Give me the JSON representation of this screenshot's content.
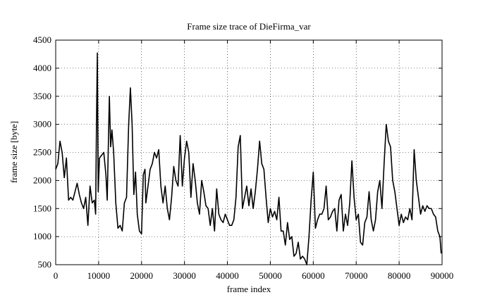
{
  "chart_data": {
    "type": "line",
    "title": "Frame size trace of DieFirma_var",
    "x_label": "frame index",
    "y_label": "frame size [byte]",
    "x": [
      0,
      500,
      1000,
      1500,
      2000,
      2500,
      3000,
      3500,
      4000,
      4500,
      5000,
      5500,
      6000,
      6500,
      7000,
      7500,
      8000,
      8500,
      9000,
      9300,
      9500,
      9700,
      9900,
      10200,
      10700,
      11200,
      11700,
      12000,
      12500,
      12800,
      13100,
      13500,
      14000,
      14500,
      15000,
      15500,
      16000,
      16500,
      17000,
      17400,
      17800,
      18200,
      18600,
      19000,
      19500,
      20000,
      20400,
      20800,
      21000,
      21500,
      22000,
      22500,
      23000,
      23500,
      24000,
      24500,
      25000,
      25500,
      26000,
      26500,
      27000,
      27500,
      28000,
      28500,
      29000,
      29500,
      30000,
      30500,
      31000,
      31500,
      32000,
      32500,
      33000,
      33500,
      34000,
      34500,
      35000,
      35500,
      36000,
      36500,
      37000,
      37500,
      38000,
      38500,
      39000,
      39500,
      40000,
      40500,
      41000,
      41500,
      42000,
      42500,
      43000,
      43500,
      44000,
      44500,
      45000,
      45500,
      46000,
      46500,
      47000,
      47500,
      48000,
      48500,
      49000,
      49500,
      50000,
      50500,
      51000,
      51500,
      52000,
      52500,
      53000,
      53500,
      54000,
      54500,
      55000,
      55500,
      56000,
      56500,
      57000,
      57500,
      58000,
      58500,
      59000,
      59500,
      60000,
      60500,
      61000,
      61500,
      62000,
      62500,
      63000,
      63500,
      64000,
      64500,
      65000,
      65500,
      66000,
      66500,
      67000,
      67500,
      68000,
      68500,
      69000,
      69500,
      70000,
      70500,
      71000,
      71500,
      72000,
      72500,
      73000,
      73500,
      74000,
      74500,
      75000,
      75500,
      76000,
      76500,
      77000,
      77500,
      78000,
      78500,
      79000,
      79500,
      80000,
      80500,
      81000,
      81500,
      82000,
      82500,
      83000,
      83500,
      84000,
      84500,
      85000,
      85500,
      86000,
      86500,
      87000,
      87500,
      88000,
      88500,
      89000,
      89500,
      89800
    ],
    "series": [
      {
        "name": "frame size",
        "color": "#000000",
        "values": [
          2200,
          2300,
          2700,
          2500,
          2050,
          2400,
          1650,
          1700,
          1650,
          1800,
          1950,
          1750,
          1600,
          1500,
          1700,
          1200,
          1900,
          1600,
          1650,
          1400,
          3000,
          4270,
          1800,
          2400,
          2450,
          2500,
          2100,
          1650,
          3500,
          2600,
          2900,
          2500,
          1600,
          1150,
          1200,
          1100,
          1600,
          1700,
          3000,
          3650,
          3000,
          1750,
          2150,
          1400,
          1100,
          1050,
          2100,
          2200,
          1600,
          1900,
          2200,
          2300,
          2500,
          2400,
          2550,
          1900,
          1600,
          1900,
          1500,
          1300,
          1700,
          2250,
          2000,
          1900,
          2800,
          1900,
          2400,
          2700,
          2500,
          1700,
          2300,
          2000,
          1600,
          1400,
          2000,
          1800,
          1550,
          1500,
          1200,
          1500,
          1100,
          1850,
          1400,
          1300,
          1250,
          1400,
          1300,
          1200,
          1200,
          1300,
          1700,
          2600,
          2800,
          1500,
          1700,
          1900,
          1550,
          1850,
          1500,
          1800,
          2200,
          2700,
          2300,
          2200,
          1700,
          1250,
          1500,
          1350,
          1450,
          1300,
          1700,
          1100,
          1100,
          850,
          1250,
          950,
          1000,
          650,
          700,
          900,
          600,
          650,
          600,
          500,
          1000,
          1650,
          2150,
          1150,
          1300,
          1400,
          1400,
          1500,
          1900,
          1300,
          1350,
          1450,
          1500,
          1100,
          1650,
          1750,
          1100,
          1400,
          1200,
          1600,
          2350,
          1700,
          1300,
          1400,
          900,
          850,
          1250,
          1350,
          1800,
          1300,
          1100,
          1300,
          1800,
          2000,
          1500,
          2300,
          3000,
          2700,
          2600,
          2000,
          1800,
          1500,
          1200,
          1400,
          1250,
          1350,
          1300,
          1500,
          1300,
          2550,
          2000,
          1700,
          1400,
          1550,
          1450,
          1550,
          1500,
          1500,
          1400,
          1350,
          1100,
          1000,
          700
        ]
      }
    ],
    "xlim": [
      0,
      90000
    ],
    "ylim": [
      500,
      4500
    ],
    "xticks": [
      0,
      10000,
      20000,
      30000,
      40000,
      50000,
      60000,
      70000,
      80000,
      90000
    ],
    "yticks": [
      500,
      1000,
      1500,
      2000,
      2500,
      3000,
      3500,
      4000,
      4500
    ],
    "grid": true
  }
}
